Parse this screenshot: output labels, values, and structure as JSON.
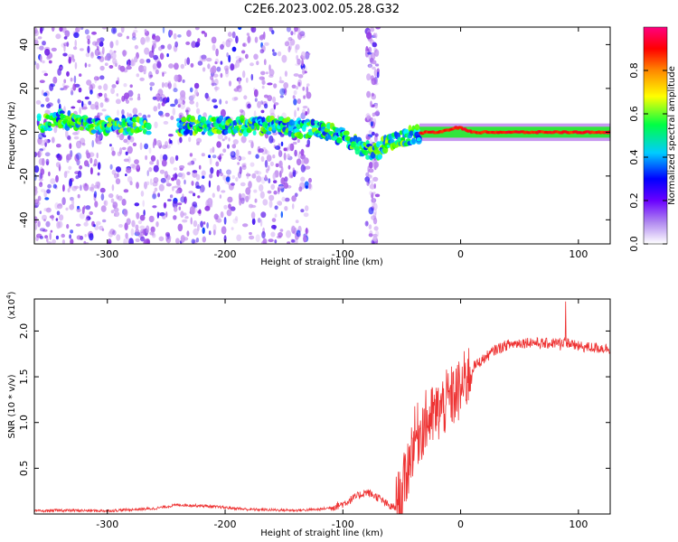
{
  "title": "C2E6.2023.002.05.28.G32",
  "chart_data": [
    {
      "type": "heatmap",
      "xlabel": "Height of straight line (km)",
      "ylabel": "Frequency (Hz)",
      "xlim": [
        -362,
        127
      ],
      "ylim": [
        -51,
        48
      ],
      "xticks": [
        -300,
        -200,
        -100,
        0,
        100
      ],
      "yticks": [
        -40,
        -20,
        0,
        20,
        40
      ],
      "xtick_labels": [
        "-300",
        "-200",
        "-100",
        "0",
        "100"
      ],
      "ytick_labels": [
        "-40",
        "-20",
        "0",
        "20",
        "40"
      ],
      "colorbar": {
        "label": "Normalized spectral amplitude",
        "range": [
          0,
          1
        ],
        "ticks": [
          0.0,
          0.2,
          0.4,
          0.6,
          0.8
        ],
        "tick_labels": [
          "0.0",
          "0.2",
          "0.4",
          "0.6",
          "0.8"
        ],
        "colormap": [
          "#ffffff",
          "#8a2be2",
          "#0000ff",
          "#00ffff",
          "#00ff00",
          "#ffff00",
          "#ff8000",
          "#ff0000",
          "#ff0080"
        ]
      },
      "ridge": {
        "x": [
          -355,
          -340,
          -320,
          -300,
          -280,
          -260,
          -240,
          -220,
          -200,
          -180,
          -160,
          -140,
          -120,
          -110,
          -100,
          -90,
          -80,
          -70,
          -65,
          -60,
          -55,
          -50,
          -45,
          -40,
          -30,
          -20,
          -10,
          -5,
          0,
          5,
          10,
          20,
          40,
          60,
          80,
          100,
          127
        ],
        "y": [
          4,
          6,
          4,
          3,
          3,
          2,
          3,
          3,
          3,
          3,
          3,
          2,
          1,
          0,
          -2,
          -5,
          -8,
          -9,
          -5,
          -5,
          -4,
          -3,
          -2,
          -1,
          0,
          0,
          1,
          2,
          2,
          1,
          0,
          0,
          0,
          0,
          0,
          0,
          0
        ]
      },
      "grid": false
    },
    {
      "type": "line",
      "xlabel": "Height of straight line (km)",
      "ylabel": "SNR (10 * v/v)",
      "y_multiplier_label": "(x10",
      "y_multiplier_exp": "4",
      "xlim": [
        -362,
        127
      ],
      "ylim": [
        0,
        23500
      ],
      "xticks": [
        -300,
        -200,
        -100,
        0,
        100
      ],
      "yticks": [
        5000,
        10000,
        15000,
        20000
      ],
      "xtick_labels": [
        "-300",
        "-200",
        "-100",
        "0",
        "100"
      ],
      "ytick_labels": [
        "0.5",
        "1.0",
        "1.5",
        "2.0"
      ],
      "color": "#ee3333",
      "series": [
        {
          "x": [
            -362,
            -340,
            -300,
            -260,
            -240,
            -220,
            -200,
            -180,
            -160,
            -140,
            -120,
            -110,
            -100,
            -90,
            -80,
            -70,
            -60,
            -55,
            -50,
            -45,
            -40,
            -35,
            -30,
            -25,
            -20,
            -15,
            -10,
            -5,
            0,
            5,
            10,
            20,
            30,
            40,
            50,
            60,
            70,
            80,
            90,
            95,
            100,
            110,
            127
          ],
          "y": [
            300,
            400,
            350,
            600,
            1000,
            900,
            700,
            500,
            450,
            400,
            500,
            700,
            1100,
            1800,
            2400,
            1800,
            800,
            700,
            2000,
            5000,
            8000,
            9000,
            10000,
            10500,
            11000,
            11800,
            12500,
            13000,
            13500,
            14800,
            16000,
            17000,
            18000,
            18500,
            18700,
            18800,
            18600,
            18700,
            18800,
            18500,
            18300,
            18200,
            18100
          ]
        }
      ],
      "grid": false
    }
  ]
}
